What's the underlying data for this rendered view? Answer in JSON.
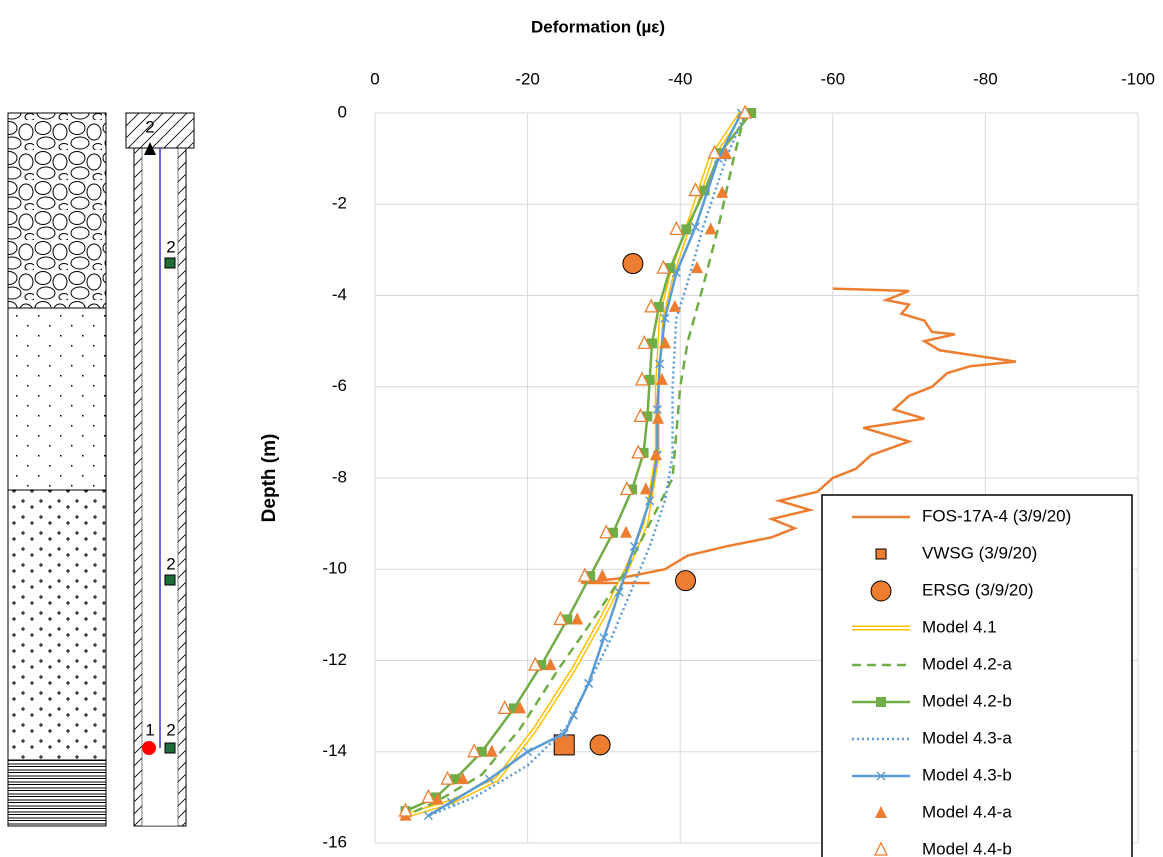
{
  "diagram": {
    "labels": [
      "2",
      "2",
      "2",
      "1",
      "2"
    ]
  },
  "chart_data": {
    "type": "line",
    "title": "Deformation (µε)",
    "y_label": "Depth (m)",
    "xlim": [
      0,
      -100
    ],
    "xticks": [
      0,
      -20,
      -40,
      -60,
      -80,
      -100
    ],
    "ylim": [
      -16,
      0
    ],
    "yticks": [
      0,
      -2,
      -4,
      -6,
      -8,
      -10,
      -12,
      -14,
      -16
    ],
    "grid": true,
    "legend": "lower right",
    "series": [
      {
        "name": "FOS-17A-4 (3/9/20)",
        "color": "#ed7d31",
        "line": "solid",
        "marker": null,
        "x": [
          -60,
          -70,
          -67,
          -70,
          -69,
          -72,
          -73,
          -76,
          -72,
          -74,
          -80,
          -84,
          -78,
          -75,
          -73,
          -70,
          -68,
          -72,
          -64,
          -70,
          -65,
          -63,
          -60,
          -58,
          -53,
          -57,
          -52,
          -55,
          -52,
          -46,
          -41,
          -38,
          -32,
          -27,
          -36
        ],
        "y": [
          -3.85,
          -3.9,
          -4.1,
          -4.2,
          -4.4,
          -4.55,
          -4.8,
          -4.85,
          -5.0,
          -5.2,
          -5.35,
          -5.45,
          -5.55,
          -5.7,
          -6.0,
          -6.2,
          -6.5,
          -6.7,
          -6.9,
          -7.2,
          -7.5,
          -7.8,
          -8.0,
          -8.3,
          -8.5,
          -8.7,
          -8.9,
          -9.1,
          -9.3,
          -9.5,
          -9.7,
          -10.0,
          -10.2,
          -10.3,
          -10.3
        ]
      },
      {
        "name": "VWSG (3/9/20)",
        "color": "#ed7d31",
        "line": null,
        "marker": "big-square",
        "x": [
          -24.8
        ],
        "y": [
          -13.85
        ]
      },
      {
        "name": "ERSG (3/9/20)",
        "color": "#ed7d31",
        "line": null,
        "marker": "circle",
        "x": [
          -33.8,
          -40.7,
          -29.5
        ],
        "y": [
          -3.3,
          -10.25,
          -13.85
        ]
      },
      {
        "name": "Model 4.1",
        "color": "#ffc000",
        "line": "double",
        "marker": null,
        "x": [
          -48,
          -44,
          -41,
          -38.8,
          -37.5,
          -37,
          -37,
          -35.5,
          -33,
          -30,
          -26,
          -21,
          -16,
          -10,
          -4
        ],
        "y": [
          0,
          -1,
          -2.5,
          -3.6,
          -4.5,
          -6,
          -7.5,
          -9,
          -10,
          -11,
          -12.2,
          -13.5,
          -14.6,
          -15.1,
          -15.4
        ]
      },
      {
        "name": "Model 4.2-a",
        "color": "#70ad47",
        "line": "dashed",
        "marker": null,
        "x": [
          -48.5,
          -47,
          -45,
          -43,
          -41,
          -40,
          -39.5,
          -39,
          -36,
          -33,
          -29,
          -24,
          -19,
          -14,
          -8,
          -4
        ],
        "y": [
          0,
          -1,
          -2.5,
          -3.8,
          -5,
          -6,
          -7,
          -8,
          -9,
          -10,
          -11,
          -12.2,
          -13.5,
          -14.5,
          -15.1,
          -15.4
        ]
      },
      {
        "name": "Model 4.2-b",
        "color": "#70ad47",
        "line": "solid",
        "marker": "square",
        "x": [
          -49.3,
          -45.2,
          -43.2,
          -40.8,
          -38.7,
          -37.2,
          -36.3,
          -36,
          -35.7,
          -35.2,
          -33.7,
          -31.2,
          -28.2,
          -25.2,
          -21.8,
          -18.2,
          -14,
          -10.5,
          -8,
          -4
        ],
        "y": [
          0,
          -0.88,
          -1.7,
          -2.55,
          -3.4,
          -4.25,
          -5.05,
          -5.85,
          -6.65,
          -7.45,
          -8.25,
          -9.2,
          -10.15,
          -11.1,
          -12.1,
          -13.05,
          -14,
          -14.6,
          -15,
          -15.3
        ]
      },
      {
        "name": "Model 4.3-a",
        "color": "#5b9bd5",
        "line": "dotted",
        "marker": null,
        "x": [
          -48.5,
          -46,
          -43,
          -41,
          -39.5,
          -39,
          -39,
          -38,
          -36,
          -33.5,
          -31,
          -28,
          -25,
          -20,
          -13,
          -7
        ],
        "y": [
          0,
          -1,
          -2.5,
          -3.7,
          -4.5,
          -6,
          -7.5,
          -8.5,
          -9.5,
          -10.5,
          -11.5,
          -12.5,
          -13.5,
          -14.3,
          -15,
          -15.4
        ]
      },
      {
        "name": "Model 4.3-b",
        "color": "#5b9bd5",
        "line": "solid",
        "marker": "x",
        "x": [
          -48,
          -45,
          -42,
          -39.5,
          -38,
          -37.3,
          -37,
          -37,
          -36,
          -34,
          -32,
          -30,
          -28,
          -26,
          -24.8,
          -20,
          -15,
          -10,
          -7
        ],
        "y": [
          0,
          -1,
          -2.5,
          -3.5,
          -4.5,
          -5.5,
          -6.5,
          -7.5,
          -8.5,
          -9.5,
          -10.5,
          -11.5,
          -12.5,
          -13.2,
          -13.6,
          -14,
          -14.6,
          -15.1,
          -15.4
        ]
      },
      {
        "name": "Model 4.4-a",
        "color": "#ed7d31",
        "line": null,
        "marker": "triangle",
        "x": [
          -48.6,
          -46,
          -45.5,
          -44,
          -42.2,
          -39.3,
          -38,
          -37.6,
          -37.1,
          -36.8,
          -35.5,
          -32.9,
          -29.8,
          -26.5,
          -23,
          -19,
          -15.3,
          -11.5,
          -8.2,
          -4
        ],
        "y": [
          0,
          -0.9,
          -1.75,
          -2.55,
          -3.4,
          -4.25,
          -5.05,
          -5.85,
          -6.7,
          -7.5,
          -8.25,
          -9.2,
          -10.15,
          -11.1,
          -12.1,
          -13.05,
          -14,
          -14.6,
          -15.05,
          -15.4
        ]
      },
      {
        "name": "Model 4.4-b",
        "color": "#ed7d31",
        "line": null,
        "marker": "triangle-open",
        "x": [
          -48.5,
          -44.5,
          -42,
          -39.5,
          -37.8,
          -36.2,
          -35.3,
          -35,
          -34.8,
          -34.5,
          -33,
          -30.3,
          -27.5,
          -24.3,
          -21,
          -17,
          -13,
          -9.5,
          -7,
          -4
        ],
        "y": [
          0,
          -0.88,
          -1.7,
          -2.55,
          -3.4,
          -4.25,
          -5.05,
          -5.85,
          -6.65,
          -7.45,
          -8.25,
          -9.2,
          -10.15,
          -11.1,
          -12.1,
          -13.05,
          -14,
          -14.6,
          -15,
          -15.3
        ]
      }
    ]
  }
}
